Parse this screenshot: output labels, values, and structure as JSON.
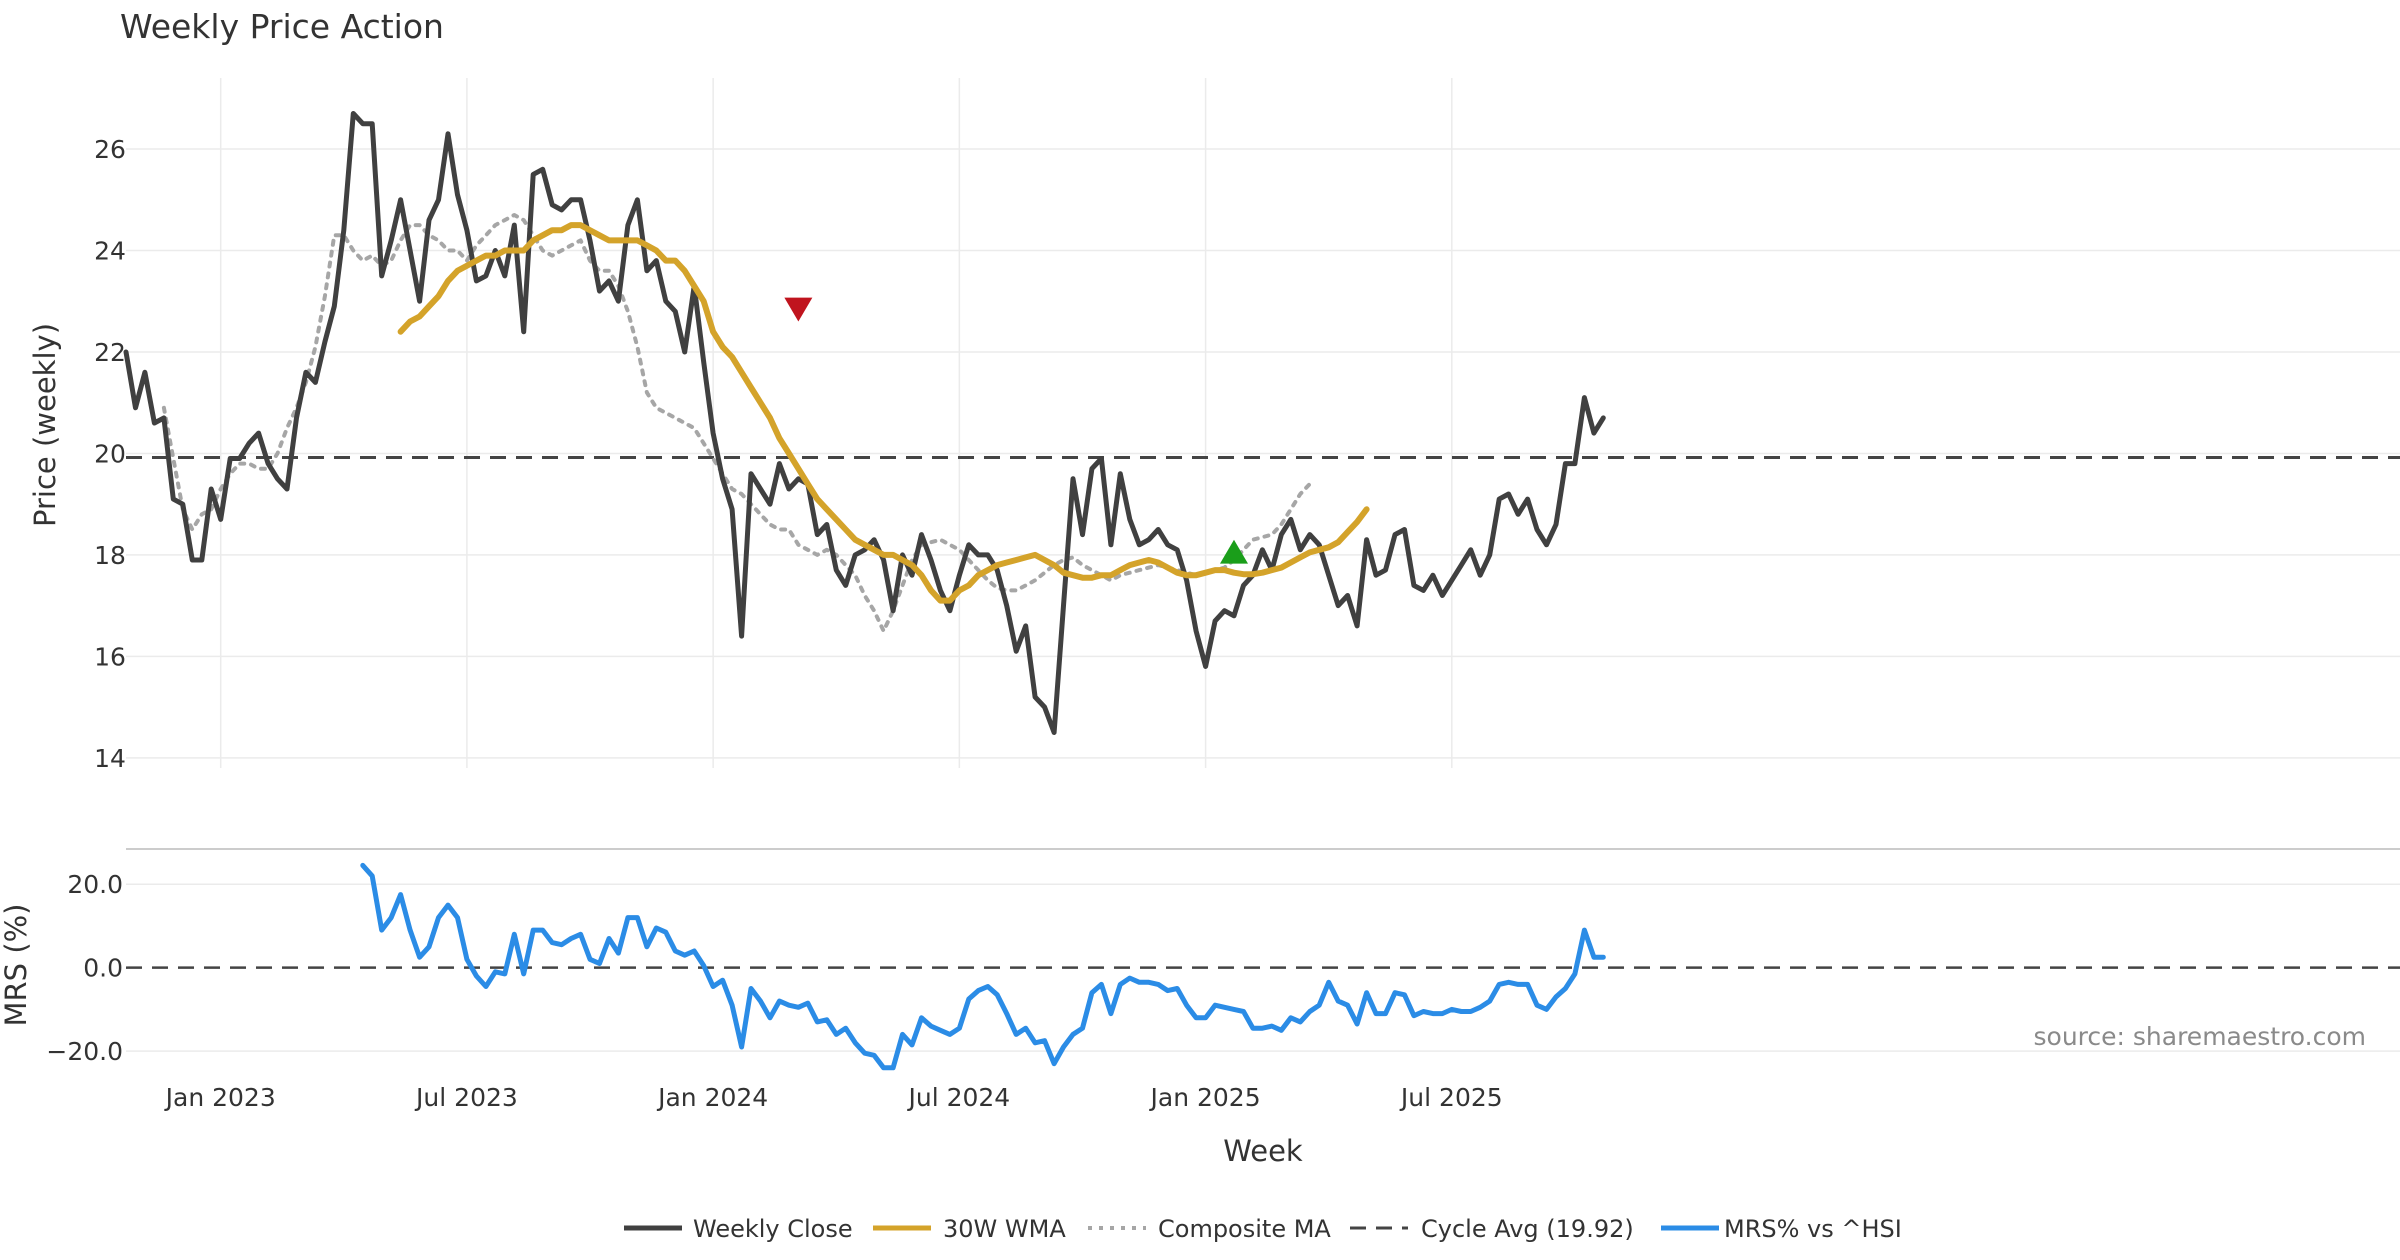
{
  "chart_data": [
    {
      "type": "line",
      "title": "Weekly Price Action",
      "ylabel": "Price (weekly)",
      "ylim": [
        13.8,
        27.4
      ],
      "yticks": [
        "14",
        "16",
        "18",
        "20",
        "22",
        "24",
        "26"
      ],
      "ytick_values": [
        14,
        16,
        18,
        20,
        22,
        24,
        26
      ],
      "x_start_week": 0,
      "cycle_avg": 19.92,
      "series": [
        {
          "name": "Weekly Close",
          "color": "#404040",
          "start": 0,
          "values": [
            22.0,
            20.9,
            21.6,
            20.6,
            20.7,
            19.1,
            19.0,
            17.9,
            17.9,
            19.3,
            18.7,
            19.9,
            19.9,
            20.2,
            20.4,
            19.8,
            19.5,
            19.3,
            20.7,
            21.6,
            21.4,
            22.2,
            22.9,
            24.4,
            26.7,
            26.5,
            26.5,
            23.5,
            24.2,
            25.0,
            24.0,
            23.0,
            24.6,
            25.0,
            26.3,
            25.1,
            24.4,
            23.4,
            23.5,
            24.0,
            23.5,
            24.5,
            22.4,
            25.5,
            25.6,
            24.9,
            24.8,
            25.0,
            25.0,
            24.2,
            23.2,
            23.4,
            23.0,
            24.5,
            25.0,
            23.6,
            23.8,
            23.0,
            22.8,
            22.0,
            23.3,
            21.8,
            20.4,
            19.5,
            18.9,
            16.4,
            19.6,
            19.3,
            19.0,
            19.8,
            19.3,
            19.5,
            19.4,
            18.4,
            18.6,
            17.7,
            17.4,
            18.0,
            18.1,
            18.3,
            17.9,
            16.9,
            18.0,
            17.6,
            18.4,
            17.9,
            17.3,
            16.9,
            17.6,
            18.2,
            18.0,
            18.0,
            17.7,
            17.0,
            16.1,
            16.6,
            15.2,
            15.0,
            14.5,
            17.0,
            19.5,
            18.4,
            19.7,
            19.9,
            18.2,
            19.6,
            18.7,
            18.2,
            18.3,
            18.5,
            18.2,
            18.1,
            17.5,
            16.5,
            15.8,
            16.7,
            16.9,
            16.8,
            17.4,
            17.6,
            18.1,
            17.7,
            18.4,
            18.7,
            18.1,
            18.4,
            18.2,
            17.6,
            17.0,
            17.2,
            16.6,
            18.3,
            17.6,
            17.7,
            18.4,
            18.5,
            17.4,
            17.3,
            17.6,
            17.2,
            17.5,
            17.8,
            18.1,
            17.6,
            18.0,
            19.1,
            19.2,
            18.8,
            19.1,
            18.5,
            18.2,
            18.6,
            19.8,
            19.8,
            21.1,
            20.4,
            20.7
          ]
        },
        {
          "name": "30W WMA",
          "color": "#d4a32a",
          "start": 29,
          "values": [
            22.4,
            22.6,
            22.7,
            22.9,
            23.1,
            23.4,
            23.6,
            23.7,
            23.8,
            23.9,
            23.9,
            24.0,
            24.0,
            24.0,
            24.2,
            24.3,
            24.4,
            24.4,
            24.5,
            24.5,
            24.4,
            24.3,
            24.2,
            24.2,
            24.2,
            24.2,
            24.1,
            24.0,
            23.8,
            23.8,
            23.6,
            23.3,
            23.0,
            22.4,
            22.1,
            21.9,
            21.6,
            21.3,
            21.0,
            20.7,
            20.3,
            20.0,
            19.7,
            19.4,
            19.1,
            18.9,
            18.7,
            18.5,
            18.3,
            18.2,
            18.1,
            18.0,
            18.0,
            17.9,
            17.8,
            17.6,
            17.3,
            17.1,
            17.1,
            17.3,
            17.4,
            17.6,
            17.7,
            17.8,
            17.85,
            17.9,
            17.95,
            18.0,
            17.9,
            17.8,
            17.65,
            17.6,
            17.55,
            17.55,
            17.6,
            17.6,
            17.7,
            17.8,
            17.85,
            17.9,
            17.85,
            17.75,
            17.65,
            17.6,
            17.6,
            17.65,
            17.7,
            17.7,
            17.65,
            17.62,
            17.62,
            17.65,
            17.7,
            17.75,
            17.85,
            17.95,
            18.05,
            18.1,
            18.15,
            18.25,
            18.45,
            18.65,
            18.9
          ]
        },
        {
          "name": "Composite MA",
          "color": "#a6a6a6",
          "start": 4,
          "values": [
            20.9,
            19.9,
            18.9,
            18.5,
            18.8,
            18.9,
            19.3,
            19.6,
            19.8,
            19.8,
            19.7,
            19.7,
            20.0,
            20.5,
            20.9,
            21.4,
            22.1,
            23.1,
            24.3,
            24.3,
            24.0,
            23.8,
            23.9,
            23.7,
            23.8,
            24.2,
            24.5,
            24.5,
            24.3,
            24.2,
            24.0,
            24.0,
            23.8,
            24.1,
            24.3,
            24.5,
            24.6,
            24.7,
            24.6,
            24.3,
            24.0,
            23.9,
            24.0,
            24.1,
            24.2,
            23.8,
            23.6,
            23.6,
            23.3,
            22.8,
            22.1,
            21.2,
            20.9,
            20.8,
            20.7,
            20.6,
            20.5,
            20.2,
            19.9,
            19.6,
            19.3,
            19.2,
            19.0,
            18.8,
            18.6,
            18.5,
            18.5,
            18.2,
            18.1,
            18.0,
            18.1,
            18.0,
            17.8,
            17.6,
            17.2,
            16.9,
            16.5,
            16.9,
            17.4,
            17.9,
            18.2,
            18.25,
            18.3,
            18.2,
            18.1,
            17.9,
            17.7,
            17.5,
            17.35,
            17.3,
            17.3,
            17.4,
            17.5,
            17.65,
            17.8,
            17.9,
            17.95,
            17.8,
            17.7,
            17.6,
            17.5,
            17.6,
            17.65,
            17.7,
            17.75,
            17.8,
            17.75,
            17.7,
            17.65,
            17.6,
            17.65,
            17.7,
            17.75,
            17.9,
            18.1,
            18.3,
            18.35,
            18.4,
            18.6,
            18.9,
            19.2,
            19.4
          ]
        }
      ],
      "markers": [
        {
          "type": "sell",
          "shape": "triangle-down",
          "color": "#c0141e",
          "week": 71,
          "value": 22.85
        },
        {
          "type": "buy",
          "shape": "triangle-up",
          "color": "#1a9e1a",
          "week": 117,
          "value": 18.05
        }
      ]
    },
    {
      "type": "line",
      "ylabel": "MRS (%)",
      "ylim": [
        -25.0,
        27.0
      ],
      "yticks": [
        "20.0",
        "0.0",
        "−20.0"
      ],
      "ytick_values": [
        20,
        0,
        -20
      ],
      "xlabel": "Week",
      "xticks": [
        "Jan 2023",
        "Jul 2023",
        "Jan 2024",
        "Jul 2024",
        "Jan 2025",
        "Jul 2025"
      ],
      "xtick_weeks": [
        10,
        36,
        62,
        88,
        114,
        140
      ],
      "series": [
        {
          "name": "MRS% vs ^HSI",
          "color": "#2b8ce6",
          "start": 25,
          "values": [
            24.5,
            22.0,
            9.0,
            12.0,
            17.5,
            9.0,
            2.5,
            5.0,
            12.0,
            15.0,
            12.0,
            2.0,
            -2.0,
            -4.5,
            -1.0,
            -1.5,
            8.0,
            -1.5,
            9.0,
            9.0,
            6.0,
            5.5,
            7.0,
            8.0,
            2.0,
            1.0,
            7.0,
            3.5,
            12.0,
            12.0,
            5.0,
            9.5,
            8.5,
            4.0,
            3.0,
            4.0,
            0.5,
            -4.5,
            -3.0,
            -9.0,
            -19.0,
            -5.0,
            -8.0,
            -12.0,
            -8.0,
            -9.0,
            -9.5,
            -8.5,
            -13.0,
            -12.5,
            -16.0,
            -14.5,
            -18.0,
            -20.5,
            -21.0,
            -24.0,
            -24.0,
            -16.0,
            -18.5,
            -12.0,
            -14.0,
            -15.0,
            -16.0,
            -14.5,
            -7.5,
            -5.5,
            -4.5,
            -6.5,
            -11.0,
            -16.0,
            -14.5,
            -18.0,
            -17.5,
            -23.0,
            -19.0,
            -16.0,
            -14.5,
            -6.0,
            -4.0,
            -11.0,
            -4.0,
            -2.5,
            -3.5,
            -3.5,
            -4.0,
            -5.5,
            -5.0,
            -9.0,
            -12.0,
            -12.0,
            -9.0,
            -9.5,
            -10.0,
            -10.5,
            -14.5,
            -14.5,
            -14.0,
            -15.0,
            -12.0,
            -13.0,
            -10.5,
            -9.0,
            -3.5,
            -8.0,
            -9.0,
            -13.5,
            -6.0,
            -11.0,
            -11.0,
            -6.0,
            -6.5,
            -11.5,
            -10.5,
            -11.0,
            -11.0,
            -10.0,
            -10.5,
            -10.5,
            -9.5,
            -8.0,
            -4.0,
            -3.5,
            -4.0,
            -4.0,
            -9.0,
            -10.0,
            -7.0,
            -5.0,
            -1.5,
            9.0,
            2.5,
            2.5
          ]
        }
      ]
    }
  ],
  "cycle_avg_line": {
    "name": "Cycle Avg (19.92)",
    "color": "#444444"
  },
  "source_text": "source: sharemaestro.com",
  "legend": [
    {
      "label": "Weekly Close",
      "color": "#404040",
      "style": "solid"
    },
    {
      "label": "30W WMA",
      "color": "#d4a32a",
      "style": "solid"
    },
    {
      "label": "Composite MA",
      "color": "#a6a6a6",
      "style": "dotted"
    },
    {
      "label": "Cycle Avg (19.92)",
      "color": "#444444",
      "style": "dashed"
    },
    {
      "label": "MRS% vs ^HSI",
      "color": "#2b8ce6",
      "style": "solid"
    }
  ]
}
